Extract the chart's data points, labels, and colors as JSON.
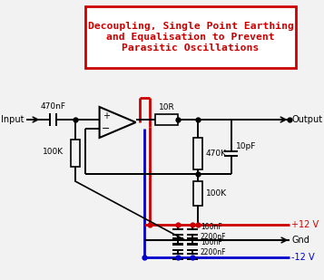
{
  "title_lines": [
    "Decoupling, Single Point Earthing",
    "and Equalisation to Prevent",
    "Parasitic Oscillations"
  ],
  "title_color": "#cc0000",
  "title_box_color": "#cc0000",
  "bg_color": "#f2f2f2",
  "component_color": "#000000",
  "red_wire": "#cc0000",
  "blue_wire": "#0000cc",
  "labels": {
    "input": "Input",
    "output": "Output",
    "c_input": "470nF",
    "r_left": "100K",
    "r_series": "10R",
    "r_feedback": "470K",
    "r_bottom": "100K",
    "c_parallel": "10pF",
    "cap1a": "100nF",
    "cap1b": "2200nF",
    "cap2a": "100nF",
    "cap2b": "2200nF",
    "vpos": "+12 V",
    "gnd": "Gnd",
    "vneg": "-12 V"
  }
}
